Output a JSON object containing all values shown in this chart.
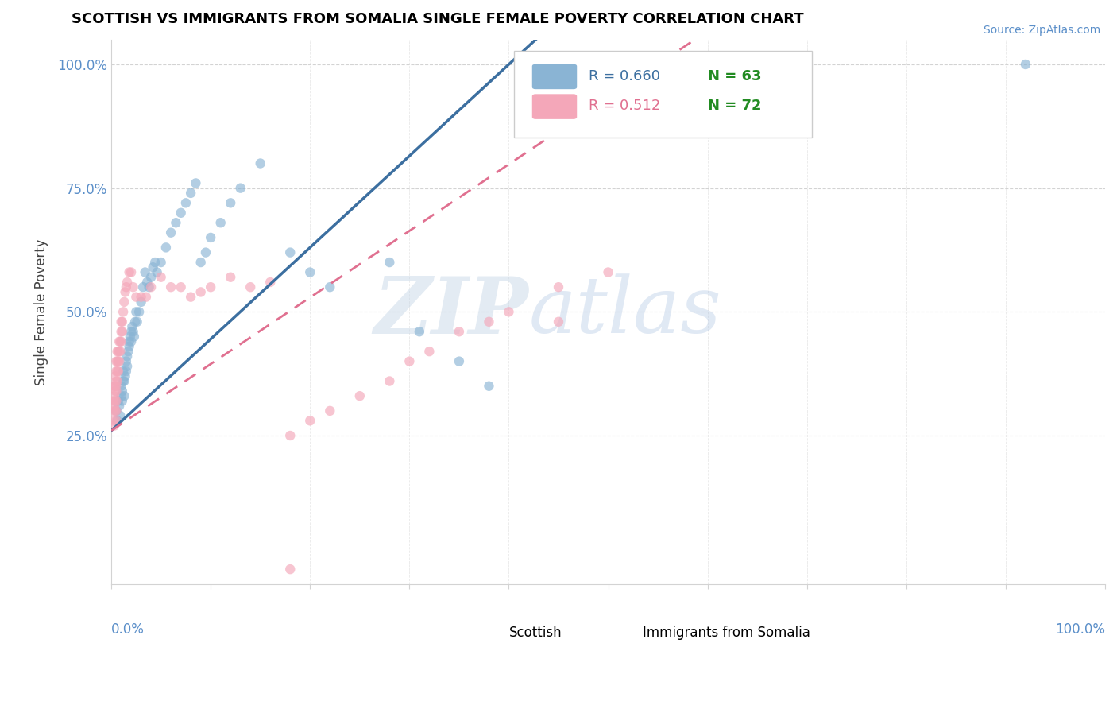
{
  "title": "SCOTTISH VS IMMIGRANTS FROM SOMALIA SINGLE FEMALE POVERTY CORRELATION CHART",
  "source": "Source: ZipAtlas.com",
  "ylabel": "Single Female Poverty",
  "legend_labels": [
    "Scottish",
    "Immigrants from Somalia"
  ],
  "legend_r": [
    "R = 0.660",
    "R = 0.512"
  ],
  "legend_n": [
    "N = 63",
    "N = 72"
  ],
  "blue_color": "#8ab4d4",
  "pink_color": "#f4a7b9",
  "blue_line_color": "#3c6fa0",
  "pink_line_color": "#e07090",
  "axis_color": "#5b8fc9",
  "watermark_zip": "ZIP",
  "watermark_atlas": "atlas",
  "xlim": [
    0,
    1.0
  ],
  "ylim": [
    -0.05,
    1.05
  ],
  "ytick_positions": [
    0.0,
    0.25,
    0.5,
    0.75,
    1.0
  ],
  "ytick_labels": [
    "",
    "25.0%",
    "50.0%",
    "75.0%",
    "100.0%"
  ],
  "scottish_x": [
    0.005,
    0.006,
    0.007,
    0.008,
    0.009,
    0.01,
    0.01,
    0.011,
    0.011,
    0.012,
    0.012,
    0.013,
    0.013,
    0.014,
    0.015,
    0.015,
    0.016,
    0.016,
    0.017,
    0.018,
    0.018,
    0.019,
    0.02,
    0.02,
    0.021,
    0.022,
    0.023,
    0.024,
    0.025,
    0.026,
    0.028,
    0.03,
    0.032,
    0.034,
    0.036,
    0.038,
    0.04,
    0.042,
    0.044,
    0.046,
    0.05,
    0.055,
    0.06,
    0.065,
    0.07,
    0.075,
    0.08,
    0.085,
    0.09,
    0.095,
    0.1,
    0.11,
    0.12,
    0.13,
    0.15,
    0.18,
    0.2,
    0.22,
    0.28,
    0.31,
    0.35,
    0.38,
    0.92
  ],
  "scottish_y": [
    0.3,
    0.28,
    0.32,
    0.31,
    0.29,
    0.33,
    0.35,
    0.34,
    0.32,
    0.36,
    0.38,
    0.33,
    0.36,
    0.37,
    0.38,
    0.4,
    0.39,
    0.41,
    0.42,
    0.43,
    0.44,
    0.45,
    0.46,
    0.44,
    0.47,
    0.46,
    0.45,
    0.48,
    0.5,
    0.48,
    0.5,
    0.52,
    0.55,
    0.58,
    0.56,
    0.55,
    0.57,
    0.59,
    0.6,
    0.58,
    0.6,
    0.63,
    0.66,
    0.68,
    0.7,
    0.72,
    0.74,
    0.76,
    0.6,
    0.62,
    0.65,
    0.68,
    0.72,
    0.75,
    0.8,
    0.62,
    0.58,
    0.55,
    0.6,
    0.46,
    0.4,
    0.35,
    1.0
  ],
  "somalia_x": [
    0.002,
    0.002,
    0.002,
    0.003,
    0.003,
    0.003,
    0.003,
    0.004,
    0.004,
    0.004,
    0.004,
    0.004,
    0.005,
    0.005,
    0.005,
    0.005,
    0.005,
    0.005,
    0.005,
    0.005,
    0.006,
    0.006,
    0.006,
    0.006,
    0.007,
    0.007,
    0.007,
    0.008,
    0.008,
    0.008,
    0.009,
    0.009,
    0.01,
    0.01,
    0.01,
    0.011,
    0.011,
    0.012,
    0.013,
    0.014,
    0.015,
    0.016,
    0.018,
    0.02,
    0.022,
    0.025,
    0.03,
    0.035,
    0.04,
    0.05,
    0.06,
    0.07,
    0.08,
    0.09,
    0.1,
    0.12,
    0.14,
    0.16,
    0.18,
    0.2,
    0.22,
    0.25,
    0.28,
    0.3,
    0.32,
    0.35,
    0.38,
    0.4,
    0.45,
    0.5,
    0.18,
    0.45
  ],
  "somalia_y": [
    0.28,
    0.3,
    0.32,
    0.27,
    0.31,
    0.33,
    0.35,
    0.3,
    0.32,
    0.34,
    0.35,
    0.37,
    0.28,
    0.3,
    0.32,
    0.34,
    0.35,
    0.36,
    0.38,
    0.4,
    0.36,
    0.38,
    0.4,
    0.42,
    0.38,
    0.4,
    0.42,
    0.4,
    0.42,
    0.44,
    0.42,
    0.44,
    0.44,
    0.46,
    0.48,
    0.46,
    0.48,
    0.5,
    0.52,
    0.54,
    0.55,
    0.56,
    0.58,
    0.58,
    0.55,
    0.53,
    0.53,
    0.53,
    0.55,
    0.57,
    0.55,
    0.55,
    0.53,
    0.54,
    0.55,
    0.57,
    0.55,
    0.56,
    0.25,
    0.28,
    0.3,
    0.33,
    0.36,
    0.4,
    0.42,
    0.46,
    0.48,
    0.5,
    0.55,
    0.58,
    -0.02,
    0.48
  ]
}
